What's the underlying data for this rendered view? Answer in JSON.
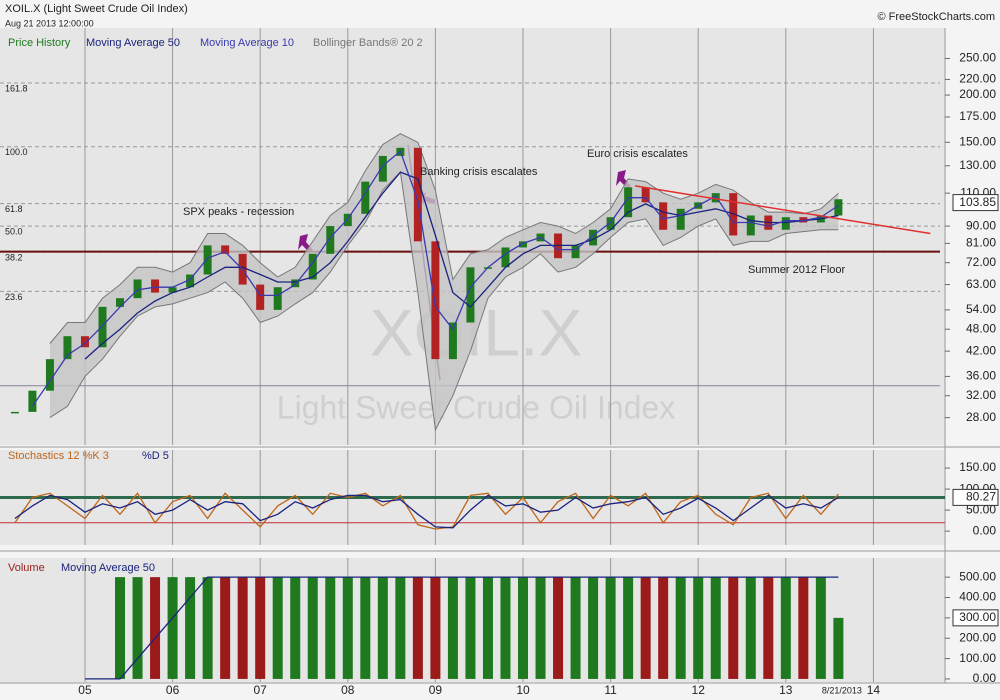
{
  "header": {
    "title": "XOIL.X (Light Sweet Crude Oil Index)",
    "date": "Aug 21 2013 12:00:00",
    "copyright": "© FreeStockCharts.com"
  },
  "chart_data": [
    {
      "type": "candlestick",
      "x": [
        2004.2,
        2004.4,
        2004.6,
        2004.8,
        2005.0,
        2005.2,
        2005.4,
        2005.6,
        2005.8,
        2006.0,
        2006.2,
        2006.4,
        2006.6,
        2006.8,
        2007.0,
        2007.2,
        2007.4,
        2007.6,
        2007.8,
        2008.0,
        2008.2,
        2008.4,
        2008.6,
        2008.8,
        2009.0,
        2009.2,
        2009.4,
        2009.6,
        2009.8,
        2010.0,
        2010.2,
        2010.4,
        2010.6,
        2010.8,
        2011.0,
        2011.2,
        2011.4,
        2011.6,
        2011.8,
        2012.0,
        2012.2,
        2012.4,
        2012.6,
        2012.8,
        2013.0,
        2013.2,
        2013.4,
        2013.6
      ],
      "series": [
        {
          "name": "Price History",
          "color": "#1f7a1f",
          "down_color": "#b22222",
          "values": [
            29,
            33,
            40,
            46,
            43,
            55,
            58,
            65,
            60,
            62,
            67,
            80,
            76,
            63,
            54,
            62,
            65,
            76,
            90,
            97,
            118,
            138,
            145,
            82,
            40,
            50,
            70,
            70,
            79,
            82,
            86,
            74,
            80,
            88,
            95,
            114,
            104,
            88,
            100,
            104,
            110,
            85,
            96,
            88,
            95,
            92,
            96,
            106
          ]
        },
        {
          "name": "Moving Average 50",
          "color": "#1a237e",
          "values": [
            null,
            null,
            null,
            null,
            40,
            44,
            48,
            53,
            57,
            60,
            62,
            66,
            70,
            70,
            67,
            64,
            64,
            66,
            72,
            82,
            95,
            110,
            125,
            120,
            85,
            60,
            55,
            62,
            70,
            76,
            80,
            80,
            80,
            83,
            88,
            98,
            103,
            98,
            96,
            98,
            100,
            97,
            93,
            92,
            92,
            93,
            94,
            96
          ]
        },
        {
          "name": "Moving Average 10",
          "color": "#3a3ab0",
          "values": [
            null,
            30,
            35,
            41,
            44,
            49,
            55,
            61,
            62,
            62,
            65,
            74,
            77,
            69,
            59,
            59,
            63,
            72,
            84,
            94,
            110,
            130,
            142,
            105,
            55,
            48,
            62,
            70,
            76,
            81,
            84,
            78,
            78,
            85,
            92,
            107,
            107,
            94,
            96,
            102,
            108,
            92,
            92,
            90,
            93,
            93,
            95,
            102
          ]
        },
        {
          "name": "Bollinger Bands® 20 2",
          "color": "#777777",
          "fill": "#c4c4c4",
          "upper": [
            null,
            null,
            44,
            50,
            50,
            58,
            63,
            70,
            70,
            68,
            72,
            86,
            86,
            80,
            72,
            66,
            70,
            82,
            96,
            104,
            126,
            148,
            158,
            150,
            112,
            65,
            76,
            78,
            84,
            88,
            92,
            90,
            86,
            92,
            100,
            120,
            118,
            110,
            106,
            110,
            116,
            112,
            104,
            98,
            98,
            97,
            100,
            110
          ],
          "lower": [
            null,
            null,
            28,
            30,
            36,
            40,
            46,
            52,
            55,
            56,
            58,
            60,
            64,
            58,
            50,
            52,
            56,
            60,
            68,
            80,
            92,
            112,
            125,
            60,
            26,
            32,
            42,
            58,
            66,
            70,
            76,
            68,
            70,
            76,
            84,
            92,
            94,
            80,
            84,
            90,
            94,
            80,
            82,
            82,
            86,
            87,
            88,
            88
          ]
        }
      ],
      "xlim": [
        2004.03,
        2014.76
      ],
      "ylim": [
        23.7,
        301
      ],
      "log_scale": true,
      "yticks": [
        {
          "value": 250,
          "label": "250.00"
        },
        {
          "value": 220,
          "label": "220.00"
        },
        {
          "value": 200,
          "label": "200.00"
        },
        {
          "value": 175,
          "label": "175.00"
        },
        {
          "value": 150,
          "label": "150.00"
        },
        {
          "value": 130,
          "label": "130.00"
        },
        {
          "value": 110,
          "label": "110.00"
        },
        {
          "value": 90,
          "label": "90.00"
        },
        {
          "value": 81,
          "label": "81.00"
        },
        {
          "value": 72,
          "label": "72.00"
        },
        {
          "value": 63,
          "label": "63.00"
        },
        {
          "value": 54,
          "label": "54.00"
        },
        {
          "value": 48,
          "label": "48.00"
        },
        {
          "value": 42,
          "label": "42.00"
        },
        {
          "value": 36,
          "label": "36.00"
        },
        {
          "value": 32,
          "label": "32.00"
        },
        {
          "value": 28,
          "label": "28.00"
        }
      ],
      "last_value": 103.85,
      "fibonacci": {
        "low": 34,
        "high": 146,
        "levels": [
          161.8,
          {
            "value": 100,
            "label": "100.0"
          },
          61.8,
          {
            "value": 50,
            "label": "50.0"
          },
          38.2,
          23.6
        ]
      },
      "floor": 77,
      "trendline": {
        "x": [
          2011.28,
          2014.65
        ],
        "values": [
          115,
          86
        ],
        "color": "#e03030"
      },
      "annotations": [
        "SPX peaks - recession",
        "Banking crisis escalates",
        "Euro crisis escalates",
        "Summer 2012 Floor"
      ],
      "watermark": [
        "XOIL.X",
        "Light Sweet Crude Oil Index"
      ]
    },
    {
      "type": "line",
      "series": [
        {
          "name": "Stochastics 12 %K 3",
          "color": "#c0661a",
          "values": [
            20,
            80,
            90,
            60,
            30,
            85,
            40,
            90,
            20,
            70,
            85,
            30,
            90,
            50,
            10,
            60,
            85,
            40,
            90,
            80,
            90,
            60,
            85,
            15,
            5,
            10,
            85,
            90,
            40,
            80,
            20,
            70,
            90,
            30,
            85,
            60,
            90,
            20,
            70,
            85,
            40,
            15,
            80,
            90,
            30,
            85,
            40,
            88
          ]
        },
        {
          "name": "%D 5",
          "color": "#1a237e",
          "values": [
            30,
            60,
            85,
            75,
            45,
            65,
            55,
            70,
            40,
            50,
            75,
            50,
            70,
            65,
            25,
            40,
            70,
            55,
            75,
            85,
            85,
            70,
            75,
            40,
            10,
            8,
            50,
            85,
            60,
            65,
            45,
            50,
            80,
            55,
            65,
            70,
            80,
            40,
            55,
            78,
            55,
            25,
            55,
            85,
            55,
            65,
            55,
            80
          ]
        }
      ],
      "xlim": [
        2004.03,
        2014.76
      ],
      "ylim": [
        -33,
        193
      ],
      "yticks": [
        {
          "value": 150,
          "label": "150.00"
        },
        {
          "value": 100,
          "label": "100.00"
        },
        {
          "value": 50,
          "label": "50.00"
        },
        {
          "value": 0,
          "label": "0.00"
        }
      ],
      "levels": [
        80,
        20
      ],
      "level_colors": [
        "#2e6b4e",
        "#c03030"
      ],
      "last_value": 80.27
    },
    {
      "type": "bar",
      "series": [
        {
          "name": "Volume",
          "color": "#9b1b1b",
          "up_color": "#1f7a1f",
          "values": [
            null,
            null,
            null,
            null,
            null,
            null,
            500,
            500,
            500,
            500,
            500,
            500,
            500,
            500,
            500,
            500,
            500,
            500,
            500,
            500,
            500,
            500,
            500,
            500,
            500,
            500,
            500,
            500,
            500,
            500,
            500,
            500,
            500,
            500,
            500,
            500,
            500,
            500,
            500,
            500,
            500,
            500,
            500,
            500,
            500,
            500,
            500,
            300
          ]
        },
        {
          "name": "Moving Average 50",
          "color": "#1a237e",
          "values": [
            null,
            null,
            null,
            null,
            0,
            0,
            0,
            100,
            200,
            300,
            400,
            500,
            500,
            500,
            500,
            500,
            500,
            500,
            500,
            500,
            500,
            500,
            500,
            500,
            500,
            500,
            500,
            500,
            500,
            500,
            500,
            500,
            500,
            500,
            500,
            500,
            500,
            500,
            500,
            500,
            500,
            500,
            500,
            500,
            500,
            500,
            500,
            500
          ]
        }
      ],
      "xlim": [
        2004.03,
        2014.76
      ],
      "ylim": [
        -15,
        594
      ],
      "yticks": [
        {
          "value": 500,
          "label": "500.00"
        },
        {
          "value": 400,
          "label": "400.00"
        },
        {
          "value": 300,
          "label": "300.00"
        },
        {
          "value": 200,
          "label": "200.00"
        },
        {
          "value": 100,
          "label": "100.00"
        },
        {
          "value": 0,
          "label": "0.00"
        }
      ],
      "last_value": {
        "value": 300,
        "label": "300.00"
      },
      "xticks": [
        {
          "value": 2005,
          "label": "05"
        },
        {
          "value": 2006,
          "label": "06"
        },
        {
          "value": 2007,
          "label": "07"
        },
        {
          "value": 2008,
          "label": "08"
        },
        {
          "value": 2009,
          "label": "09"
        },
        {
          "value": 2010,
          "label": "10"
        },
        {
          "value": 2011,
          "label": "11"
        },
        {
          "value": 2012,
          "label": "12"
        },
        {
          "value": 2013,
          "label": "13"
        },
        {
          "value": 2014,
          "label": "14"
        }
      ],
      "last_date": {
        "value": 2013.64,
        "label": "8/21/2013"
      }
    }
  ]
}
